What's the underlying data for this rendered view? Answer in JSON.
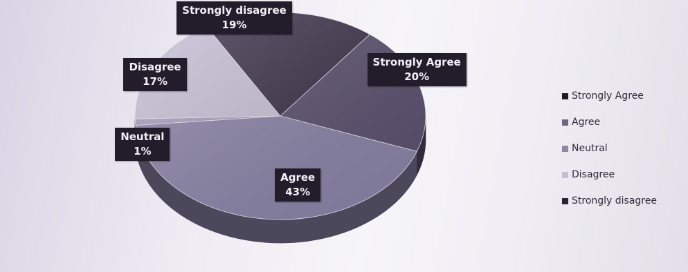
{
  "chart_data": {
    "type": "pie",
    "three_d": true,
    "categories": [
      "Strongly Agree",
      "Agree",
      "Neutral",
      "Disagree",
      "Strongly disagree"
    ],
    "values": [
      20,
      43,
      1,
      17,
      19
    ],
    "data_labels": [
      {
        "category": "Strongly Agree",
        "text": "Strongly Agree",
        "value": "20%"
      },
      {
        "category": "Agree",
        "text": "Agree",
        "value": "43%"
      },
      {
        "category": "Neutral",
        "text": "Neutral",
        "value": "1%"
      },
      {
        "category": "Disagree",
        "text": "Disagree",
        "value": "17%"
      },
      {
        "category": "Strongly disagree",
        "text": "Strongly disagree",
        "value": "19%"
      }
    ],
    "colors": [
      "#5a4f6e",
      "#8a83a8",
      "#a79fbe",
      "#c6c0d6",
      "#3b3048"
    ],
    "legend": {
      "position": "right",
      "items": [
        "Strongly Agree",
        "Agree",
        "Neutral",
        "Disagree",
        "Strongly disagree"
      ],
      "swatch_colors": [
        "#1f1a26",
        "#6e6783",
        "#8e86a6",
        "#c4bfd2",
        "#2b2433"
      ]
    }
  }
}
